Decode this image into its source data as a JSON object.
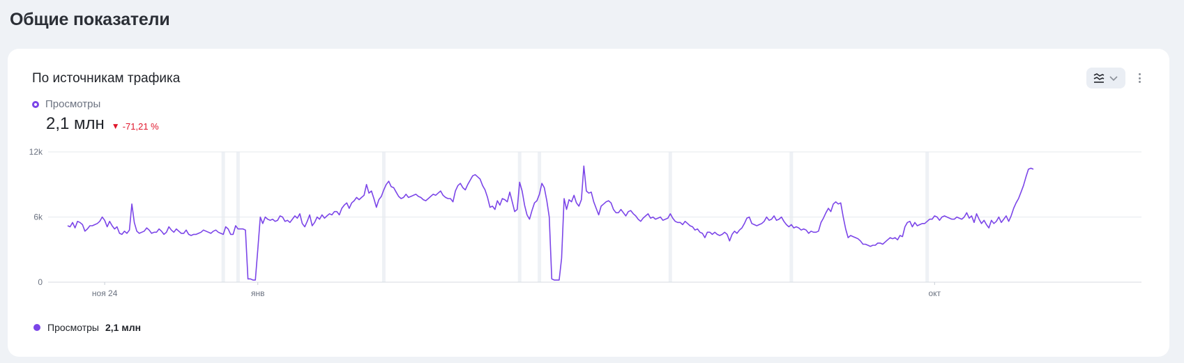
{
  "page": {
    "title": "Общие показатели"
  },
  "card": {
    "title": "По источникам трафика",
    "metric": {
      "label": "Просмотры",
      "value": "2,1 млн",
      "delta": "-71,21 %",
      "delta_symbol": "▼"
    },
    "legend": {
      "label": "Просмотры",
      "value": "2,1 млн"
    }
  },
  "colors": {
    "series": "#7b45e8",
    "delta": "#e0162b",
    "background": "#eff2f6"
  },
  "icons": {
    "toolbar": [
      "chart-type-icon",
      "chevron-down-icon"
    ],
    "more": "more-vertical-icon"
  },
  "chart_data": {
    "type": "line",
    "y_ticks": [
      "0",
      "6k",
      "12k"
    ],
    "ylim": [
      0,
      12000
    ],
    "x_ticks": [
      {
        "label": "ноя 24",
        "index": 15
      },
      {
        "label": "янв",
        "index": 77
      },
      {
        "label": "окт",
        "index": 351
      }
    ],
    "highlight_days": [
      63,
      69,
      128,
      183,
      191,
      244,
      293,
      348
    ],
    "series": [
      {
        "name": "Просмотры",
        "values": [
          5200,
          5100,
          5500,
          5000,
          5600,
          5500,
          5300,
          4700,
          4900,
          5200,
          5200,
          5300,
          5400,
          5600,
          6000,
          5700,
          5100,
          5600,
          5200,
          4900,
          5100,
          4500,
          4400,
          4700,
          4500,
          4800,
          7200,
          5500,
          4700,
          4500,
          4600,
          4700,
          5000,
          4800,
          4500,
          4600,
          4600,
          4900,
          4700,
          4400,
          4600,
          5100,
          4800,
          4600,
          4900,
          4700,
          4500,
          4500,
          4800,
          4400,
          4300,
          4400,
          4400,
          4500,
          4600,
          4800,
          4700,
          4600,
          4500,
          4700,
          4800,
          4600,
          4500,
          4400,
          5100,
          4900,
          4400,
          4400,
          5200,
          4900,
          4900,
          4900,
          4800,
          300,
          300,
          200,
          200,
          3000,
          6000,
          5400,
          6000,
          5800,
          5700,
          5800,
          5600,
          5700,
          6100,
          6000,
          5600,
          5700,
          5500,
          5800,
          6100,
          5900,
          6300,
          5400,
          5100,
          5600,
          6200,
          5200,
          5500,
          6000,
          5800,
          6200,
          5900,
          6100,
          6300,
          6200,
          6500,
          6500,
          6200,
          6800,
          7100,
          7300,
          6800,
          7300,
          7500,
          7800,
          7600,
          7800,
          8000,
          9000,
          8200,
          8400,
          7700,
          6900,
          7600,
          7900,
          8500,
          9000,
          9300,
          8800,
          8700,
          8300,
          7900,
          7700,
          7800,
          8100,
          7800,
          7900,
          8000,
          8100,
          7900,
          7800,
          7600,
          7500,
          7700,
          7900,
          8100,
          8000,
          8200,
          8400,
          8000,
          7800,
          7700,
          7700,
          7400,
          8400,
          8900,
          9100,
          8700,
          8500,
          9000,
          9400,
          9800,
          9900,
          9700,
          9500,
          8900,
          8500,
          7800,
          6900,
          7000,
          6700,
          7500,
          7100,
          7700,
          7600,
          7400,
          8300,
          7400,
          6500,
          6700,
          9200,
          8400,
          7100,
          6200,
          5800,
          6600,
          7300,
          7500,
          8100,
          9100,
          8700,
          7500,
          6000,
          300,
          200,
          200,
          200,
          2200,
          7700,
          6700,
          7600,
          7400,
          8000,
          7300,
          7000,
          7600,
          10700,
          8400,
          8200,
          8300,
          7400,
          6800,
          6200,
          7000,
          7200,
          7400,
          7500,
          7300,
          6700,
          6400,
          6400,
          6700,
          6400,
          6100,
          6500,
          6600,
          6300,
          6100,
          5800,
          5600,
          5900,
          6100,
          6300,
          5900,
          6000,
          5800,
          5900,
          6000,
          5700,
          5800,
          5900,
          6300,
          5900,
          5600,
          5500,
          5500,
          5300,
          5600,
          5400,
          5200,
          5100,
          4800,
          4900,
          4600,
          4500,
          4100,
          4600,
          4600,
          4400,
          4600,
          4400,
          4300,
          4400,
          4600,
          4400,
          3800,
          4400,
          4700,
          4500,
          4800,
          5000,
          5400,
          5900,
          6000,
          5400,
          5300,
          5200,
          5300,
          5400,
          5600,
          6000,
          5700,
          5800,
          6100,
          5700,
          5800,
          6000,
          5600,
          5300,
          5100,
          5300,
          5000,
          5100,
          5000,
          4800,
          4900,
          4800,
          4500,
          4700,
          4600,
          4600,
          4700,
          5500,
          5900,
          6400,
          6800,
          6500,
          7200,
          7400,
          7200,
          7300,
          6000,
          4900,
          4100,
          4300,
          4200,
          4100,
          4000,
          3800,
          3500,
          3500,
          3400,
          3300,
          3400,
          3400,
          3600,
          3600,
          3500,
          3700,
          3900,
          4100,
          4000,
          4100,
          3900,
          4300,
          4200,
          5100,
          5500,
          5600,
          5100,
          5500,
          5200,
          5300,
          5400,
          5400,
          5600,
          5800,
          5800,
          6100,
          6000,
          5700,
          6000,
          6100,
          6000,
          5900,
          5800,
          5800,
          6000,
          5900,
          5800,
          6000,
          6400,
          5900,
          6100,
          5500,
          6300,
          5800,
          5400,
          5700,
          5300,
          5000,
          5700,
          5400,
          5600,
          6000,
          5500,
          5800,
          6100,
          5600,
          6100,
          6800,
          7300,
          7700,
          8300,
          8900,
          9700,
          10400,
          10500,
          10400
        ]
      }
    ]
  }
}
